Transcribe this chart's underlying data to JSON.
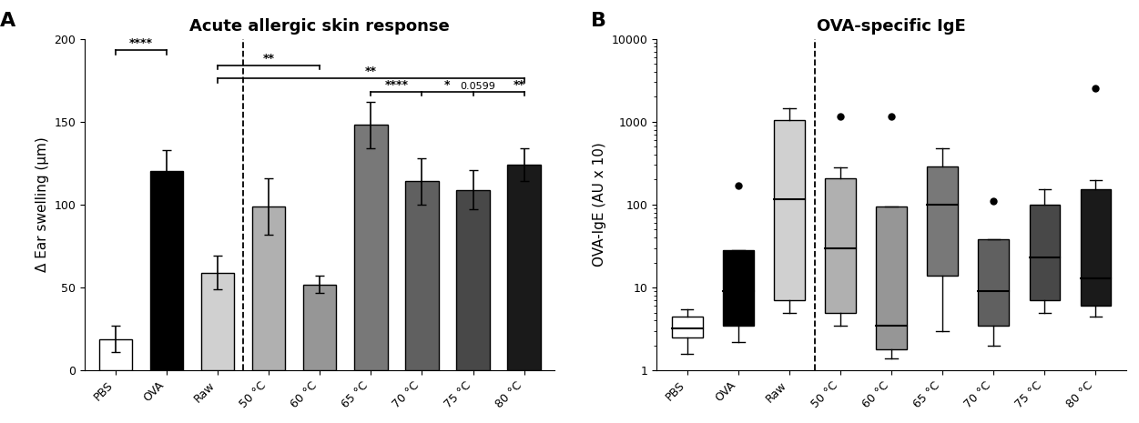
{
  "panel_A": {
    "title": "Acute allergic skin response",
    "ylabel": "Δ Ear swelling (μm)",
    "categories": [
      "PBS",
      "OVA",
      "Raw",
      "50 °C",
      "60 °C",
      "65 °C",
      "70 °C",
      "75 °C",
      "80 °C"
    ],
    "means": [
      19,
      120,
      59,
      99,
      52,
      148,
      114,
      109,
      124
    ],
    "errors": [
      8,
      13,
      10,
      17,
      5,
      14,
      14,
      12,
      10
    ],
    "colors": [
      "#ffffff",
      "#000000",
      "#d0d0d0",
      "#b0b0b0",
      "#969696",
      "#787878",
      "#606060",
      "#484848",
      "#1a1a1a"
    ],
    "bar_edge_color": "#000000",
    "ylim": [
      0,
      200
    ],
    "yticks": [
      0,
      50,
      100,
      150,
      200
    ],
    "dashed_line_x": 2.5
  },
  "panel_B": {
    "title": "OVA-specific IgE",
    "ylabel": "OVA-IgE (AU x 10)",
    "categories": [
      "PBS",
      "OVA",
      "Raw",
      "50 °C",
      "60 °C",
      "65 °C",
      "70 °C",
      "75 °C",
      "80 °C"
    ],
    "colors": [
      "#ffffff",
      "#000000",
      "#d0d0d0",
      "#b0b0b0",
      "#969696",
      "#787878",
      "#606060",
      "#484848",
      "#1a1a1a"
    ],
    "bar_edge_color": "#000000",
    "boxes": [
      {
        "q1": 2.5,
        "median": 3.2,
        "q3": 4.5,
        "whislo": 1.6,
        "whishi": 5.5,
        "fliers": []
      },
      {
        "q1": 3.5,
        "median": 9.0,
        "q3": 28,
        "whislo": 2.2,
        "whishi": 28,
        "fliers": [
          170
        ]
      },
      {
        "q1": 7.0,
        "median": 115,
        "q3": 1050,
        "whislo": 5.0,
        "whishi": 1450,
        "fliers": []
      },
      {
        "q1": 5.0,
        "median": 30,
        "q3": 210,
        "whislo": 3.5,
        "whishi": 280,
        "fliers": [
          1150
        ]
      },
      {
        "q1": 1.8,
        "median": 3.5,
        "q3": 95,
        "whislo": 1.4,
        "whishi": 95,
        "fliers": [
          1150
        ]
      },
      {
        "q1": 14,
        "median": 100,
        "q3": 290,
        "whislo": 3.0,
        "whishi": 480,
        "fliers": []
      },
      {
        "q1": 3.5,
        "median": 9.0,
        "q3": 38,
        "whislo": 2.0,
        "whishi": 38,
        "fliers": [
          110
        ]
      },
      {
        "q1": 7.0,
        "median": 23,
        "q3": 100,
        "whislo": 5.0,
        "whishi": 155,
        "fliers": []
      },
      {
        "q1": 6.0,
        "median": 13,
        "q3": 155,
        "whislo": 4.5,
        "whishi": 195,
        "fliers": [
          2500
        ]
      }
    ],
    "dashed_line_x": 2.5
  },
  "background_color": "#ffffff",
  "panel_label_fontsize": 16,
  "title_fontsize": 13,
  "tick_fontsize": 9,
  "axis_fontsize": 11
}
